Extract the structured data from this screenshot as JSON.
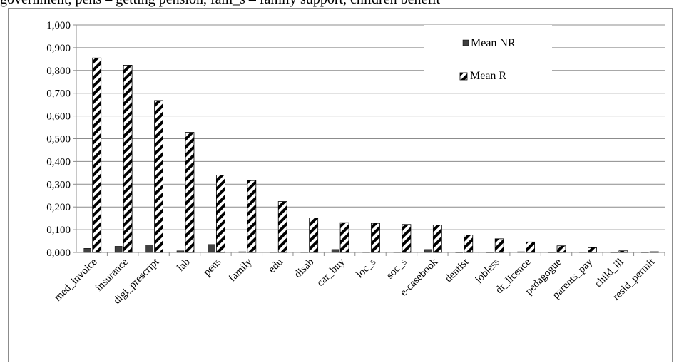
{
  "caption": "government, pens – getting pension, fam_s – family support, children benefit",
  "chart_data": {
    "type": "bar",
    "categories": [
      "med_invoice",
      "insurance",
      "digi_prescript",
      "lab",
      "pens",
      "family",
      "edu",
      "disab",
      "car_buy",
      "loc_s",
      "soc_s",
      "e-casebook",
      "dentist",
      "jobless",
      "dr_licence",
      "pedagogue",
      "parents_pay",
      "child_ill",
      "resid_permit"
    ],
    "series": [
      {
        "name": "Mean NR",
        "color": "#404040",
        "values": [
          0.018,
          0.027,
          0.033,
          0.007,
          0.035,
          0.003,
          0.002,
          0.002,
          0.013,
          0.002,
          0.002,
          0.013,
          0.001,
          0.001,
          0.003,
          0.001,
          0.002,
          0.001,
          0.001
        ]
      },
      {
        "name": "Mean R",
        "color": "#ffffff",
        "pattern": "diagonal-black-stripes",
        "values": [
          0.855,
          0.823,
          0.668,
          0.528,
          0.34,
          0.316,
          0.224,
          0.152,
          0.131,
          0.128,
          0.123,
          0.121,
          0.077,
          0.06,
          0.046,
          0.029,
          0.021,
          0.007,
          0.003
        ]
      }
    ],
    "ylim": [
      0,
      1.0
    ],
    "yticks": [
      "0,000",
      "0,100",
      "0,200",
      "0,300",
      "0,400",
      "0,500",
      "0,600",
      "0,700",
      "0,800",
      "0,900",
      "1,000"
    ],
    "grid": true,
    "legend_position": "top-right",
    "title": "",
    "xlabel": "",
    "ylabel": ""
  }
}
